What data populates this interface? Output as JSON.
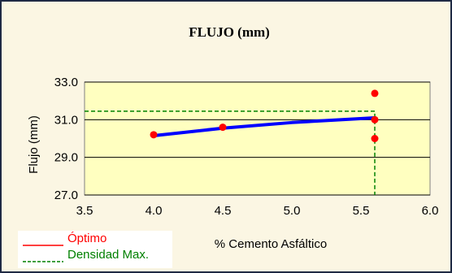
{
  "chart_data": {
    "type": "scatter",
    "title": "FLUJO (mm)",
    "xlabel": "% Cemento Asfáltico",
    "ylabel": "Flujo (mm)",
    "xlim": [
      3.5,
      6.0
    ],
    "ylim": [
      27.0,
      33.0
    ],
    "x_ticks": [
      "3.5",
      "4.0",
      "4.5",
      "5.0",
      "5.5",
      "6.0"
    ],
    "y_ticks": [
      "27.0",
      "29.0",
      "31.0",
      "33.0"
    ],
    "grid": "horizontal",
    "legend_position": "bottom-left",
    "series": [
      {
        "kind": "points",
        "color": "#ff0000",
        "points": [
          {
            "x": 4.0,
            "y": 30.2
          },
          {
            "x": 4.5,
            "y": 30.6
          },
          {
            "x": 5.6,
            "y": 32.4
          },
          {
            "x": 5.6,
            "y": 31.0
          },
          {
            "x": 5.6,
            "y": 30.0
          }
        ]
      },
      {
        "kind": "line",
        "color": "#0000ff",
        "points": [
          {
            "x": 4.0,
            "y": 30.15
          },
          {
            "x": 4.5,
            "y": 30.55
          },
          {
            "x": 5.0,
            "y": 30.85
          },
          {
            "x": 5.6,
            "y": 31.1
          }
        ]
      },
      {
        "kind": "reference",
        "name": "Densidad Max.",
        "color": "#008000",
        "x": 5.6,
        "y": 31.45
      }
    ],
    "legend": [
      {
        "name": "Óptimo",
        "color": "#ff0000",
        "style": "solid"
      },
      {
        "name": "Densidad Max.",
        "color": "#008000",
        "style": "dashed"
      }
    ]
  },
  "colors": {
    "background": "#fbf6e3",
    "plot_background": "#ffffc0",
    "frame": "#1f2a44"
  }
}
